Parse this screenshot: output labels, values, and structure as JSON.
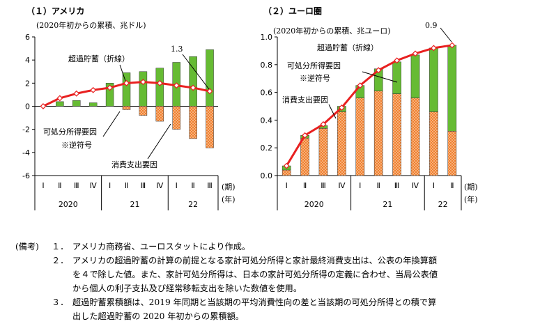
{
  "chart_data": [
    {
      "type": "bar",
      "title": "（１）アメリカ",
      "subtitle": "(2020年初からの累積、兆ドル)",
      "categories": [
        "Ⅰ",
        "Ⅱ",
        "Ⅲ",
        "Ⅳ",
        "Ⅰ",
        "Ⅱ",
        "Ⅲ",
        "Ⅳ",
        "Ⅰ",
        "Ⅱ",
        "Ⅲ"
      ],
      "years": [
        {
          "label": "2020",
          "span": 4
        },
        {
          "label": "21",
          "span": 4
        },
        {
          "label": "22",
          "span": 3
        }
      ],
      "period_label": "(期)",
      "year_label": "(年)",
      "ylim": [
        -6,
        6
      ],
      "yticks": [
        "6",
        "4",
        "2",
        "0",
        "-2",
        "-4",
        "-6"
      ],
      "series": [
        {
          "name": "可処分所得要因 ※逆符号",
          "kind": "bar",
          "color": "#66bb33",
          "values": [
            0.0,
            0.4,
            0.5,
            0.3,
            2.0,
            2.9,
            3.0,
            3.3,
            3.8,
            4.3,
            4.9
          ]
        },
        {
          "name": "消費支出要因",
          "kind": "bar",
          "color": "#f08030",
          "values": [
            0.0,
            0.0,
            0.0,
            0.0,
            0.0,
            -0.3,
            -0.8,
            -1.3,
            -2.0,
            -2.8,
            -3.6
          ]
        },
        {
          "name": "超過貯蓄（折線）",
          "kind": "line",
          "color": "#e82020",
          "values": [
            0.0,
            0.7,
            1.1,
            1.4,
            1.6,
            2.0,
            2.1,
            2.0,
            1.8,
            1.6,
            1.3
          ]
        }
      ],
      "annotations": {
        "line_label": "超過貯蓄（折線）",
        "last_value": "1.3",
        "income_label_1": "可処分所得要因",
        "income_label_2": "※逆符号",
        "consumption_label": "消費支出要因"
      }
    },
    {
      "type": "bar",
      "title": "（２）ユーロ圏",
      "subtitle": "(2020年初からの累積、兆ユーロ)",
      "categories": [
        "Ⅰ",
        "Ⅱ",
        "Ⅲ",
        "Ⅳ",
        "Ⅰ",
        "Ⅱ",
        "Ⅲ",
        "Ⅳ",
        "Ⅰ",
        "Ⅱ"
      ],
      "years": [
        {
          "label": "2020",
          "span": 4
        },
        {
          "label": "21",
          "span": 4
        },
        {
          "label": "22",
          "span": 2
        }
      ],
      "period_label": "(期)",
      "year_label": "(年)",
      "ylim": [
        0,
        1.0
      ],
      "yticks": [
        "1.0",
        "0.8",
        "0.6",
        "0.4",
        "0.2",
        "0.0"
      ],
      "series": [
        {
          "name": "消費支出要因",
          "kind": "bar",
          "color": "#f08030",
          "values": [
            0.04,
            0.27,
            0.34,
            0.46,
            0.56,
            0.61,
            0.59,
            0.56,
            0.46,
            0.32
          ]
        },
        {
          "name": "可処分所得要因 ※逆符号",
          "kind": "bar",
          "color": "#66bb33",
          "values": [
            0.03,
            0.02,
            0.02,
            0.04,
            0.09,
            0.16,
            0.23,
            0.31,
            0.46,
            0.62
          ]
        },
        {
          "name": "超過貯蓄（折線）",
          "kind": "line",
          "color": "#e82020",
          "values": [
            0.07,
            0.29,
            0.37,
            0.49,
            0.65,
            0.76,
            0.83,
            0.88,
            0.92,
            0.94
          ]
        }
      ],
      "annotations": {
        "line_label": "超過貯蓄（折線）",
        "last_value": "0.9",
        "income_label_1": "可処分所得要因",
        "income_label_2": "※逆符号",
        "consumption_label": "消費支出要因"
      }
    }
  ],
  "notes": {
    "head": "(備考)",
    "items": [
      {
        "num": "１．",
        "lines": [
          "アメリカ商務省、ユーロスタットにより作成。"
        ]
      },
      {
        "num": "２．",
        "lines": [
          "アメリカの超過貯蓄の計算の前提となる家計可処分所得と家計最終消費支出は、公表の年換算額",
          "を４で除した値。また、家計可処分所得は、日本の家計可処分所得の定義に合わせ、当局公表値",
          "から個人の利子支払及び経常移転支出を除いた数値を使用。"
        ]
      },
      {
        "num": "３．",
        "lines": [
          "超過貯蓄累積額は、2019 年同期と当該期の平均消費性向の差と当該期の可処分所得との積で算",
          "出した超過貯蓄の 2020 年初からの累積額。"
        ]
      }
    ]
  }
}
